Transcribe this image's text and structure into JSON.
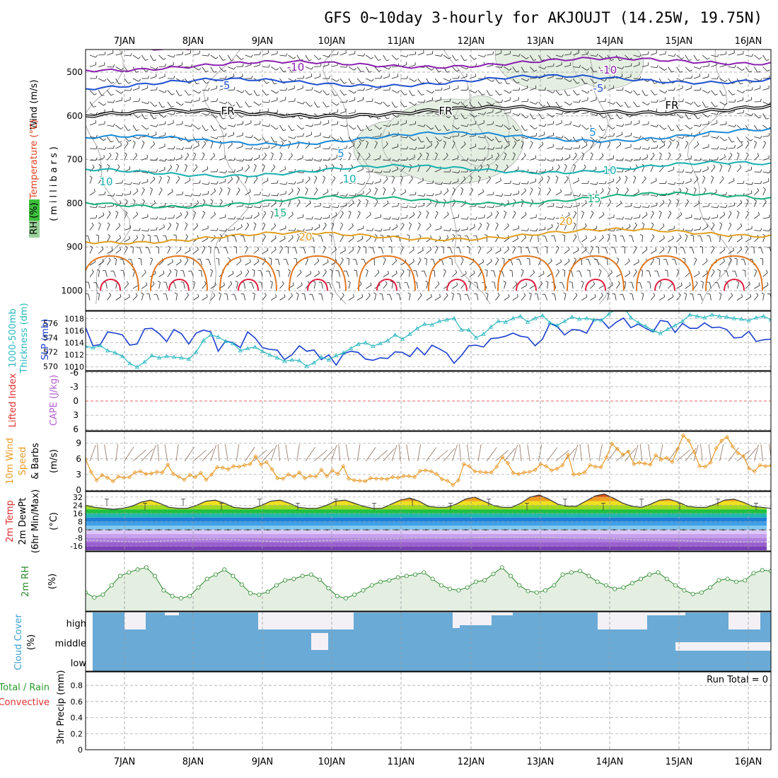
{
  "title": "GFS 0~10day 3-hourly for AKJOUJT (14.25W, 19.75N)",
  "days": [
    "7JAN",
    "8JAN",
    "9JAN",
    "10JAN",
    "11JAN",
    "12JAN",
    "13JAN",
    "14JAN",
    "15JAN",
    "16JAN"
  ],
  "panels": {
    "upper": {
      "ylabel_wind": "Wind (m/s)",
      "ylabel_temp": "Temperature (°C)",
      "ylabel_rh": "RH (%)",
      "ylabel_units": "(millibars)",
      "levels": [
        "500",
        "600",
        "700",
        "800",
        "900",
        "1000"
      ],
      "isotherm_labels": [
        "-10",
        "-5",
        "FR",
        "5",
        "10",
        "15",
        "20",
        "0",
        "10"
      ]
    },
    "thickness": {
      "ylabel_left": "1000-500mb",
      "ylabel_left2": "Thickness (dm)",
      "ylabel_right": "SLP (mb)",
      "left_ticks": [
        "576",
        "574",
        "572",
        "570"
      ],
      "right_ticks": [
        "1018",
        "1016",
        "1014",
        "1012",
        "1010"
      ]
    },
    "cape": {
      "ylabel_li": "Lifted Index",
      "ylabel_cape": "CAPE (J/kg)",
      "ticks": [
        "-6",
        "-3",
        "0",
        "3",
        "6"
      ]
    },
    "wind10": {
      "ylabel": "10m Wind",
      "ylabel2": "Speed",
      "ylabel3": "& Barbs",
      "units": "(m/s)",
      "ticks": [
        "9",
        "6",
        "3",
        "0"
      ]
    },
    "temp2m": {
      "ylabel": "2m Temp",
      "ylabel2": "2m DewPt",
      "ylabel3": "(6hr Min/Max)",
      "units": "(°C)",
      "ticks": [
        "32",
        "24",
        "16",
        "8",
        "0",
        "-8",
        "-16"
      ]
    },
    "rh2m": {
      "ylabel": "2m RH",
      "units": "(%)"
    },
    "cloud": {
      "ylabel": "Cloud Cover",
      "units": "(%)",
      "rows": [
        "high",
        "middle",
        "low"
      ]
    },
    "precip": {
      "ylabel_a": "Total / Rain",
      "ylabel_b": "Convective",
      "ylabel_c": "3hr Precip (mm)",
      "ticks": [
        "0.8",
        "0.6",
        "0.4",
        "0.2",
        "0"
      ],
      "run_total": "Run Total = 0"
    }
  },
  "colors": {
    "rh_fill": "#e4efe2",
    "cloud_blue": "#6aaad6",
    "cloud_white": "#f4f1f6",
    "slp": "#1c3fd0",
    "thickness": "#2ab8c0",
    "wind_speed": "#e89a2a",
    "rh_line": "#2a8a2a"
  },
  "chart_data": [
    {
      "type": "line",
      "title": "1000-500mb Thickness (dm) / SLP (mb)",
      "series": [
        {
          "name": "SLP (mb)",
          "values": [
            1016.5,
            1013.5,
            1013.7,
            1015.8,
            1015.6,
            1015.3,
            1013.6,
            1013.8,
            1016.3,
            1016.4,
            1015.5,
            1014.2,
            1016.2,
            1015.5,
            1013.8,
            1015.6,
            1016.1,
            1015.8,
            1012.6,
            1014.3,
            1014.0,
            1013.2,
            1015.8,
            1014.8,
            1013.2,
            1012.9,
            1012.8,
            1011.2,
            1012.0,
            1013.5,
            1012.6,
            1012.8,
            1011.2,
            1012.0,
            1010.3,
            1012.2,
            1012.6,
            1012.4,
            1011.3,
            1011.1,
            1011.5,
            1011.4,
            1012.5,
            1012.4,
            1011.7,
            1013.2,
            1012.0,
            1013.6,
            1013.0,
            1012.3,
            1010.6,
            1011.9,
            1013.5,
            1013.6,
            1013.3,
            1014.7,
            1014.8,
            1015.1,
            1015.6,
            1015.1,
            1014.9,
            1013.5,
            1014.6,
            1017.2,
            1016.7,
            1015.3,
            1016.2,
            1016.1,
            1015.6,
            1017.8,
            1017.8,
            1016.4,
            1017.4,
            1018.1,
            1016.5,
            1017.1,
            1016.4,
            1015.8,
            1017.7,
            1017.5,
            1015.7,
            1017.2,
            1016.4,
            1016.4,
            1017.3,
            1016.5,
            1016.6,
            1016.2,
            1014.8,
            1014.9,
            1015.9,
            1014.2,
            1014.5,
            1014.6
          ]
        },
        {
          "name": "Thickness (dm)",
          "values": [
            572.8,
            572.6,
            572.9,
            572.2,
            571.9,
            571.4,
            570.4,
            569.9,
            570.6,
            571.5,
            571.2,
            571.4,
            571.3,
            571.2,
            571.0,
            572.0,
            573.6,
            574.4,
            574.1,
            573.5,
            573.2,
            572.2,
            572.5,
            572.7,
            572.1,
            571.6,
            571.2,
            570.7,
            570.9,
            570.8,
            570.0,
            570.5,
            571.3,
            570.9,
            571.5,
            571.9,
            572.5,
            573.1,
            573.3,
            572.8,
            573.2,
            573.6,
            574.4,
            573.8,
            574.5,
            575.3,
            575.9,
            575.8,
            576.3,
            576.5,
            576.7,
            575.1,
            575.1,
            574.0,
            574.5,
            575.5,
            576.3,
            576.2,
            576.7,
            577.0,
            576.2,
            576.7,
            577.1,
            576.1,
            575.7,
            576.3,
            576.9,
            576.6,
            576.7,
            576.5,
            576.4,
            577.3,
            578.0,
            578.3,
            576.8,
            576.1,
            575.6,
            575.0,
            574.6,
            575.2,
            575.7,
            576.3,
            577.2,
            577.0,
            576.8,
            577.2,
            577.0,
            576.9,
            576.7,
            576.6,
            576.4,
            576.8,
            577.0,
            576.5
          ]
        }
      ],
      "ylim_left": [
        569.5,
        577.5
      ],
      "ylim_right": [
        1009.5,
        1019
      ]
    },
    {
      "type": "line",
      "title": "10m Wind Speed (m/s)",
      "series": [
        {
          "name": "Speed (m/s)",
          "values": [
            5.9,
            3.5,
            1.9,
            2.9,
            2.4,
            1.7,
            2.6,
            2.4,
            2.5,
            3.4,
            3.6,
            3.1,
            3.2,
            3.5,
            3.4,
            4.9,
            3.1,
            2.6,
            2.0,
            2.9,
            2.5,
            3.3,
            2.0,
            3.0,
            4.4,
            4.3,
            4.0,
            4.6,
            4.5,
            4.8,
            5.0,
            6.5,
            4.9,
            5.4,
            4.0,
            2.3,
            2.2,
            3.0,
            2.6,
            3.4,
            2.3,
            2.7,
            2.6,
            3.9,
            2.7,
            3.8,
            3.1,
            4.6,
            2.2,
            1.9,
            1.8,
            1.7,
            2.3,
            2.2,
            2.2,
            2.1,
            2.5,
            2.4,
            2.7,
            2.7,
            2.5,
            3.7,
            3.8,
            3.6,
            3.1,
            2.1,
            1.8,
            1.0,
            1.9,
            5.0,
            4.6,
            3.6,
            3.5,
            3.4,
            3.4,
            4.5,
            6.4,
            5.2,
            3.3,
            3.1,
            3.4,
            3.5,
            3.9,
            5.0,
            4.6,
            3.8,
            4.1,
            4.8,
            6.8,
            3.0,
            3.1,
            3.4,
            4.8,
            4.5,
            4.4,
            6.3,
            8.9,
            7.9,
            6.8,
            7.4,
            5.0,
            5.3,
            5.1,
            4.9,
            6.7,
            5.9,
            6.2,
            5.4,
            7.9,
            10.5,
            9.5,
            7.3,
            4.6,
            4.5,
            5.3,
            8.0,
            9.5,
            10.2,
            8.4,
            7.1,
            6.5,
            4.2,
            3.6,
            4.8,
            4.6,
            4.7
          ]
        }
      ],
      "ylim": [
        0,
        11
      ]
    },
    {
      "type": "line",
      "title": "2m RH (%)",
      "series": [
        {
          "name": "2m RH (%)",
          "values": [
            45,
            38,
            42,
            55,
            68,
            73,
            77,
            80,
            68,
            48,
            40,
            37,
            40,
            52,
            64,
            70,
            77,
            68,
            56,
            44,
            42,
            46,
            55,
            62,
            64,
            68,
            70,
            63,
            51,
            40,
            37,
            42,
            48,
            55,
            60,
            62,
            66,
            68,
            70,
            73,
            64,
            55,
            50,
            48,
            52,
            60,
            62,
            71,
            80,
            68,
            55,
            47,
            45,
            48,
            55,
            70,
            73,
            75,
            68,
            60,
            55,
            50,
            52,
            58,
            64,
            70,
            73,
            64,
            55,
            48,
            43,
            45,
            52,
            62,
            64,
            60,
            62,
            72,
            76,
            75,
            70,
            68,
            64,
            60,
            51,
            39,
            42,
            46,
            52,
            58,
            60,
            65,
            68,
            55,
            46,
            42,
            46,
            52,
            60,
            62,
            70
          ]
        }
      ],
      "ylim": [
        20,
        100
      ]
    },
    {
      "type": "line",
      "title": "2m Temp (°C)",
      "series": [
        {
          "name": "2m Temp (°C)",
          "values": [
            24,
            22,
            21,
            20,
            21,
            23,
            27,
            29,
            26,
            22,
            21,
            21,
            24,
            28,
            29,
            26,
            22,
            21,
            21,
            24,
            28,
            29,
            26,
            22,
            21,
            21,
            24,
            28,
            29,
            26,
            23,
            21,
            21,
            25,
            29,
            31,
            28,
            23,
            22,
            22,
            25,
            30,
            32,
            28,
            24,
            22,
            22,
            26,
            32,
            34,
            30,
            25,
            23,
            23,
            28,
            33,
            35,
            31,
            26,
            23,
            22,
            25,
            29,
            30,
            27,
            23,
            22,
            22,
            25,
            29,
            30,
            27,
            23,
            22,
            21
          ]
        },
        {
          "name": "2m DewPt (°C)",
          "values": [
            -10,
            -11,
            -12,
            -11,
            -10,
            -9,
            -10,
            -11,
            -12,
            -11,
            -10,
            -9,
            -9,
            -8,
            -8,
            -8,
            -7,
            -7,
            -7,
            -8,
            -8,
            -9,
            -10,
            -10,
            -11,
            -12,
            -12,
            -12
          ]
        }
      ],
      "ylim": [
        -20,
        36
      ]
    },
    {
      "type": "heatmap",
      "title": "Cloud Cover (%)",
      "rows": [
        "high",
        "middle",
        "low"
      ]
    },
    {
      "type": "bar",
      "title": "3hr Precip (mm)",
      "values": [],
      "ylim": [
        0,
        0.95
      ]
    }
  ]
}
